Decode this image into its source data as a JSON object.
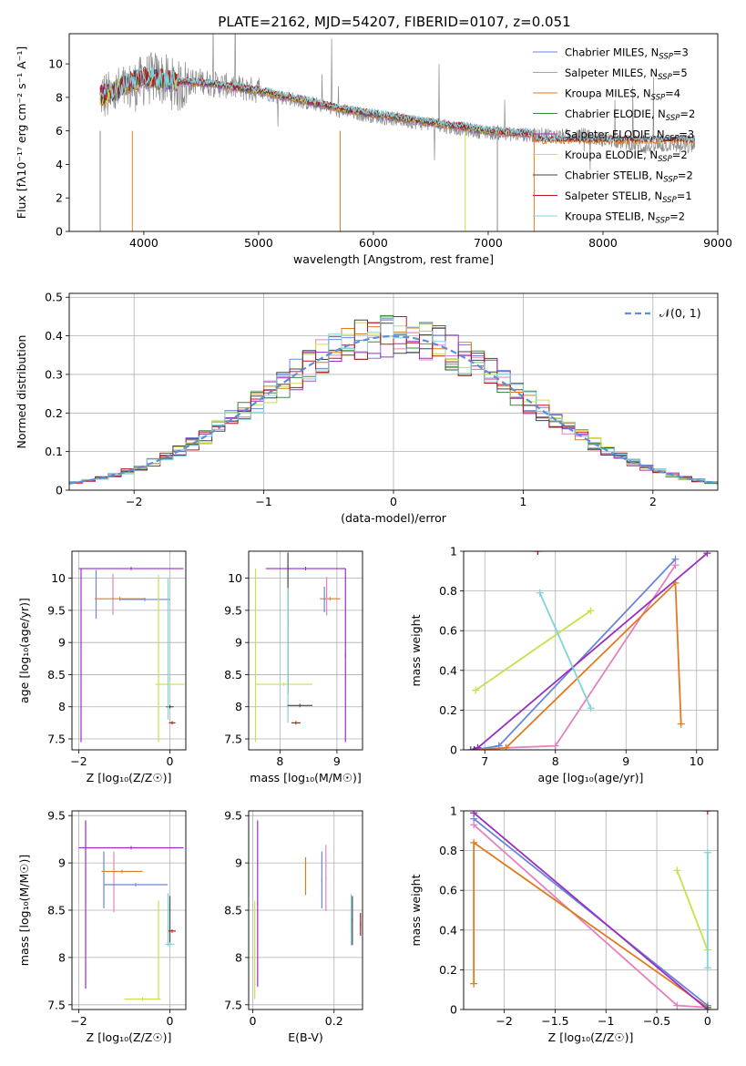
{
  "figure_title": "PLATE=2162, MJD=54207, FIBERID=0107, z=0.051",
  "colors": {
    "Chabrier MILES": "#6a86d8",
    "Salpeter MILES": "#e581be",
    "Kroupa MILES": "#e07a1f",
    "Chabrier ELODIE": "#3a8a3a",
    "Salpeter ELODIE": "#9a2fc0",
    "Kroupa ELODIE": "#c8e04a",
    "Chabrier STELIB": "#444444",
    "Salpeter STELIB": "#c0141e",
    "Kroupa STELIB": "#7fd3dc",
    "spectrum": "#8c8c8c",
    "normal": "#5b8fd9"
  },
  "chart_data": [
    {
      "id": "spectrum",
      "type": "line",
      "title": "PLATE=2162, MJD=54207, FIBERID=0107, z=0.051",
      "xlabel": "wavelength [Angstrom, rest frame]",
      "ylabel": "Flux [fλ10⁻¹⁷ erg cm⁻² s⁻¹ A⁻¹]",
      "xlim": [
        3350,
        9000
      ],
      "ylim": [
        0,
        11.8
      ],
      "xticks": [
        4000,
        5000,
        6000,
        7000,
        8000,
        9000
      ],
      "yticks": [
        0,
        2,
        4,
        6,
        8,
        10
      ],
      "grid": false,
      "legend_position": "top-right",
      "legend": [
        {
          "label": "Chabrier MILES, N",
          "sub": "SSP",
          "tail": "=3"
        },
        {
          "label": "Salpeter MILES, N",
          "sub": "SSP",
          "tail": "=5"
        },
        {
          "label": "Kroupa MILES, N",
          "sub": "SSP",
          "tail": "=4"
        },
        {
          "label": "Chabrier ELODIE, N",
          "sub": "SSP",
          "tail": "=2"
        },
        {
          "label": "Salpeter ELODIE, N",
          "sub": "SSP",
          "tail": "=3"
        },
        {
          "label": "Kroupa ELODIE, N",
          "sub": "SSP",
          "tail": "=2"
        },
        {
          "label": "Chabrier STELIB, N",
          "sub": "SSP",
          "tail": "=2"
        },
        {
          "label": "Salpeter STELIB, N",
          "sub": "SSP",
          "tail": "=1"
        },
        {
          "label": "Kroupa STELIB, N",
          "sub": "SSP",
          "tail": "=2"
        }
      ],
      "data_series": {
        "name": "data",
        "x": [
          3620,
          3700,
          3800,
          3900,
          4000,
          4100,
          4200,
          4300,
          4400,
          4500,
          4600,
          4700,
          4800,
          4900,
          5000,
          5100,
          5200,
          5300,
          5400,
          5500,
          5600,
          5700,
          5800,
          5900,
          6000,
          6100,
          6200,
          6300,
          6400,
          6500,
          6600,
          6700,
          6800,
          6900,
          7000,
          7100,
          7200,
          7300,
          7400,
          7500,
          7600,
          7700,
          7800,
          7900,
          8000,
          8100,
          8200,
          8300,
          8400,
          8500,
          8600,
          8700,
          8800
        ],
        "y": [
          8.2,
          8.0,
          8.4,
          8.6,
          9.0,
          9.2,
          9.0,
          8.6,
          8.9,
          9.0,
          8.8,
          8.7,
          8.6,
          8.5,
          8.4,
          8.2,
          8.0,
          7.9,
          7.7,
          7.6,
          7.4,
          7.2,
          7.1,
          7.0,
          6.9,
          6.8,
          6.7,
          6.6,
          6.5,
          6.4,
          6.3,
          6.2,
          6.1,
          6.0,
          5.9,
          5.9,
          5.8,
          5.8,
          5.7,
          5.8,
          5.7,
          5.7,
          5.8,
          5.6,
          5.5,
          5.4,
          5.3,
          5.1,
          5.0,
          5.1,
          5.2,
          5.0,
          5.1
        ]
      },
      "model_series": {
        "name": "models",
        "x": [
          3620,
          3700,
          3800,
          3900,
          4000,
          4200,
          4400,
          4600,
          4800,
          5000,
          5200,
          5400,
          5600,
          5800,
          6000,
          6200,
          6400,
          6600,
          6800,
          7000,
          7200,
          7400
        ],
        "y": [
          8.1,
          8.2,
          8.6,
          9.0,
          9.2,
          9.0,
          8.9,
          8.8,
          8.6,
          8.4,
          8.1,
          7.8,
          7.5,
          7.2,
          7.0,
          6.8,
          6.6,
          6.4,
          6.2,
          6.0,
          5.9,
          5.8
        ]
      }
    },
    {
      "id": "residuals",
      "type": "line",
      "xlabel": "(data-model)/error",
      "ylabel": "Normed distribution",
      "xlim": [
        -2.5,
        2.5
      ],
      "ylim": [
        0,
        0.51
      ],
      "xticks": [
        -2,
        -1,
        0,
        1,
        2
      ],
      "yticks": [
        0.0,
        0.1,
        0.2,
        0.3,
        0.4,
        0.5
      ],
      "grid": true,
      "legend_position": "top-right",
      "legend": [
        {
          "label": "𝒩(0, 1)"
        }
      ],
      "bin_width": 0.1
    },
    {
      "id": "age-vs-Z",
      "type": "scatter",
      "xlabel": "Z [log₁₀(Z/Z☉)]",
      "ylabel": "age  [log₁₀(age/yr)]",
      "xlim": [
        -2.15,
        0.35
      ],
      "ylim": [
        7.33,
        10.42
      ],
      "xticks": [
        -2,
        0
      ],
      "yticks": [
        7.5,
        8.0,
        8.5,
        9.0,
        9.5,
        10.0
      ],
      "grid": true,
      "points": [
        {
          "model": "Salpeter ELODIE",
          "x": -0.85,
          "y": 10.15,
          "xerr": 1.15,
          "yerr": 0.0
        },
        {
          "model": "Salpeter ELODIE",
          "x": -1.95,
          "y": 8.8,
          "xerr": 0.0,
          "yerr": 1.35
        },
        {
          "model": "Chabrier MILES",
          "x": -0.55,
          "y": 9.67,
          "xerr": 0.55,
          "yerr": 0.0
        },
        {
          "model": "Chabrier MILES",
          "x": -1.62,
          "y": 9.75,
          "xerr": 0.0,
          "yerr": 0.38
        },
        {
          "model": "Salpeter MILES",
          "x": -1.25,
          "y": 9.75,
          "xerr": 0.0,
          "yerr": 0.32
        },
        {
          "model": "Kroupa MILES",
          "x": -1.1,
          "y": 9.68,
          "xerr": 0.55,
          "yerr": 0.0
        },
        {
          "model": "Kroupa ELODIE",
          "x": -0.25,
          "y": 8.75,
          "xerr": 0.0,
          "yerr": 1.3
        },
        {
          "model": "Kroupa ELODIE",
          "x": 0.0,
          "y": 8.35,
          "xerr": 0.32,
          "yerr": 0.0
        },
        {
          "model": "Chabrier STELIB",
          "x": 0.0,
          "y": 8.0,
          "xerr": 0.08,
          "yerr": 0.0
        },
        {
          "model": "Kroupa STELIB",
          "x": -0.04,
          "y": 8.9,
          "xerr": 0.0,
          "yerr": 1.1
        },
        {
          "model": "Salpeter STELIB",
          "x": 0.05,
          "y": 7.75,
          "xerr": 0.07,
          "yerr": 0.0
        }
      ]
    },
    {
      "id": "age-vs-mass",
      "type": "scatter",
      "xlabel": "mass [log₁₀(M/M☉)]",
      "ylabel": "",
      "xlim": [
        7.45,
        9.45
      ],
      "ylim": [
        7.33,
        10.42
      ],
      "xticks": [
        8,
        9
      ],
      "yticks": [
        7.5,
        8.0,
        8.5,
        9.0,
        9.5,
        10.0
      ],
      "grid": true,
      "points": [
        {
          "model": "Salpeter ELODIE",
          "x": 8.45,
          "y": 10.15,
          "xerr": 0.7,
          "yerr": 0.0
        },
        {
          "model": "Salpeter ELODIE",
          "x": 9.15,
          "y": 8.8,
          "xerr": 0.0,
          "yerr": 1.35
        },
        {
          "model": "Kroupa ELODIE",
          "x": 7.57,
          "y": 8.8,
          "xerr": 0.0,
          "yerr": 1.35
        },
        {
          "model": "Kroupa ELODIE",
          "x": 8.07,
          "y": 8.35,
          "xerr": 0.5,
          "yerr": 0.0
        },
        {
          "model": "Chabrier STELIB",
          "x": 8.14,
          "y": 9.3,
          "xerr": 0.0,
          "yerr": 1.1
        },
        {
          "model": "Kroupa STELIB",
          "x": 8.14,
          "y": 8.8,
          "xerr": 0.0,
          "yerr": 1.05
        },
        {
          "model": "Salpeter STELIB",
          "x": 8.28,
          "y": 7.75,
          "xerr": 0.08,
          "yerr": 0.0
        },
        {
          "model": "Chabrier STELIB",
          "x": 8.35,
          "y": 8.02,
          "xerr": 0.22,
          "yerr": 0.0
        },
        {
          "model": "Kroupa MILES",
          "x": 8.88,
          "y": 9.68,
          "xerr": 0.18,
          "yerr": 0.0
        },
        {
          "model": "Chabrier MILES",
          "x": 8.78,
          "y": 9.67,
          "xerr": 0.0,
          "yerr": 0.2
        },
        {
          "model": "Salpeter MILES",
          "x": 8.82,
          "y": 9.72,
          "xerr": 0.0,
          "yerr": 0.3
        }
      ]
    },
    {
      "id": "weight-vs-age",
      "type": "line",
      "xlabel": "age  [log₁₀(age/yr)]",
      "ylabel": "mass weight",
      "xlim": [
        6.7,
        10.3
      ],
      "ylim": [
        0,
        1.0
      ],
      "xticks": [
        7,
        8,
        9,
        10
      ],
      "yticks": [
        0.0,
        0.2,
        0.4,
        0.6,
        0.8,
        1.0
      ],
      "grid": true,
      "series": [
        {
          "model": "Chabrier MILES",
          "x": [
            6.85,
            7.2,
            9.7
          ],
          "y": [
            0.0,
            0.02,
            0.96
          ]
        },
        {
          "model": "Salpeter MILES",
          "x": [
            6.85,
            7.3,
            8.0,
            9.7
          ],
          "y": [
            0.0,
            0.01,
            0.02,
            0.93
          ]
        },
        {
          "model": "Kroupa MILES",
          "x": [
            6.9,
            7.3,
            9.7,
            9.78
          ],
          "y": [
            0.0,
            0.01,
            0.84,
            0.13
          ]
        },
        {
          "model": "Chabrier ELODIE",
          "x": [
            6.9
          ],
          "y": [
            0.01
          ]
        },
        {
          "model": "Salpeter ELODIE",
          "x": [
            6.8,
            6.9,
            10.15
          ],
          "y": [
            0.0,
            0.01,
            0.99
          ]
        },
        {
          "model": "Kroupa ELODIE",
          "x": [
            6.87,
            8.5
          ],
          "y": [
            0.3,
            0.7
          ]
        },
        {
          "model": "Chabrier STELIB",
          "x": [
            6.85
          ],
          "y": [
            0.0
          ]
        },
        {
          "model": "Salpeter STELIB",
          "x": [
            7.75
          ],
          "y": [
            1.0
          ]
        },
        {
          "model": "Kroupa STELIB",
          "x": [
            7.78,
            8.5
          ],
          "y": [
            0.79,
            0.21
          ]
        }
      ]
    },
    {
      "id": "mass-vs-Z",
      "type": "scatter",
      "xlabel": "Z [log₁₀(Z/Z☉)]",
      "ylabel": "mass [log₁₀(M/M☉)]",
      "xlim": [
        -2.15,
        0.35
      ],
      "ylim": [
        7.45,
        9.55
      ],
      "xticks": [
        -2,
        0
      ],
      "yticks": [
        7.5,
        8.0,
        8.5,
        9.0,
        9.5
      ],
      "grid": true,
      "points": [
        {
          "model": "Salpeter ELODIE",
          "x": -0.85,
          "y": 9.16,
          "xerr": 1.15,
          "yerr": 0.0
        },
        {
          "model": "Salpeter ELODIE",
          "x": -1.85,
          "y": 8.56,
          "xerr": 0.0,
          "yerr": 0.89
        },
        {
          "model": "Chabrier MILES",
          "x": -1.45,
          "y": 8.82,
          "xerr": 0.0,
          "yerr": 0.3
        },
        {
          "model": "Salpeter MILES",
          "x": -1.23,
          "y": 8.8,
          "xerr": 0.0,
          "yerr": 0.32
        },
        {
          "model": "Kroupa MILES",
          "x": -1.05,
          "y": 8.91,
          "xerr": 0.45,
          "yerr": 0.0
        },
        {
          "model": "Chabrier MILES",
          "x": -0.75,
          "y": 8.77,
          "xerr": 0.7,
          "yerr": 0.0
        },
        {
          "model": "Kroupa ELODIE",
          "x": -0.25,
          "y": 8.08,
          "xerr": 0.0,
          "yerr": 0.52
        },
        {
          "model": "Kroupa ELODIE",
          "x": -0.6,
          "y": 7.56,
          "xerr": 0.4,
          "yerr": 0.0
        },
        {
          "model": "Chabrier STELIB",
          "x": 0.0,
          "y": 8.39,
          "xerr": 0.0,
          "yerr": 0.26
        },
        {
          "model": "Kroupa STELIB",
          "x": -0.04,
          "y": 8.4,
          "xerr": 0.0,
          "yerr": 0.28
        },
        {
          "model": "Salpeter STELIB",
          "x": 0.05,
          "y": 8.28,
          "xerr": 0.08,
          "yerr": 0.0
        },
        {
          "model": "Kroupa STELIB",
          "x": 0.0,
          "y": 8.14,
          "xerr": 0.1,
          "yerr": 0.0
        }
      ]
    },
    {
      "id": "mass-vs-EBV",
      "type": "scatter",
      "xlabel": "E(B-V)",
      "ylabel": "",
      "xlim": [
        -0.01,
        0.27
      ],
      "ylim": [
        7.45,
        9.55
      ],
      "xticks": [
        0.0,
        0.2
      ],
      "yticks": [
        7.5,
        8.0,
        8.5,
        9.0,
        9.5
      ],
      "grid": true,
      "points": [
        {
          "model": "Salpeter ELODIE",
          "x": 0.012,
          "y": 8.57,
          "xerr": 0.0,
          "yerr": 0.88
        },
        {
          "model": "Kroupa ELODIE",
          "x": 0.005,
          "y": 8.08,
          "xerr": 0.0,
          "yerr": 0.52
        },
        {
          "model": "Kroupa MILES",
          "x": 0.13,
          "y": 8.86,
          "xerr": 0.0,
          "yerr": 0.2
        },
        {
          "model": "Chabrier MILES",
          "x": 0.17,
          "y": 8.82,
          "xerr": 0.0,
          "yerr": 0.3
        },
        {
          "model": "Salpeter MILES",
          "x": 0.18,
          "y": 8.84,
          "xerr": 0.0,
          "yerr": 0.35
        },
        {
          "model": "Chabrier STELIB",
          "x": 0.245,
          "y": 8.39,
          "xerr": 0.0,
          "yerr": 0.26
        },
        {
          "model": "Kroupa STELIB",
          "x": 0.242,
          "y": 8.4,
          "xerr": 0.0,
          "yerr": 0.27
        },
        {
          "model": "Salpeter STELIB",
          "x": 0.265,
          "y": 8.35,
          "xerr": 0.0,
          "yerr": 0.12
        }
      ]
    },
    {
      "id": "weight-vs-Z",
      "type": "line",
      "xlabel": "Z [log₁₀(Z/Z☉)]",
      "ylabel": "mass weight",
      "xlim": [
        -2.4,
        0.1
      ],
      "ylim": [
        0,
        1.0
      ],
      "xticks": [
        -2.0,
        -1.5,
        -1.0,
        -0.5,
        0.0
      ],
      "yticks": [
        0.0,
        0.2,
        0.4,
        0.6,
        0.8,
        1.0
      ],
      "grid": true,
      "series": [
        {
          "model": "Chabrier MILES",
          "x": [
            -2.3,
            0.0
          ],
          "y": [
            0.96,
            0.02
          ]
        },
        {
          "model": "Salpeter MILES",
          "x": [
            -2.3,
            -0.3,
            0.0
          ],
          "y": [
            0.93,
            0.02,
            0.01
          ]
        },
        {
          "model": "Kroupa MILES",
          "x": [
            -2.3,
            -2.3,
            0.0
          ],
          "y": [
            0.13,
            0.84,
            0.01
          ]
        },
        {
          "model": "Chabrier ELODIE",
          "x": [
            0.0
          ],
          "y": [
            0.01
          ]
        },
        {
          "model": "Salpeter ELODIE",
          "x": [
            -2.3,
            0.0
          ],
          "y": [
            0.99,
            0.0
          ]
        },
        {
          "model": "Kroupa ELODIE",
          "x": [
            -0.3,
            0.0
          ],
          "y": [
            0.7,
            0.3
          ]
        },
        {
          "model": "Chabrier STELIB",
          "x": [
            0.0
          ],
          "y": [
            0.0
          ]
        },
        {
          "model": "Salpeter STELIB",
          "x": [
            0.0
          ],
          "y": [
            1.0
          ]
        },
        {
          "model": "Kroupa STELIB",
          "x": [
            0.0,
            0.0
          ],
          "y": [
            0.79,
            0.21
          ]
        }
      ]
    }
  ]
}
